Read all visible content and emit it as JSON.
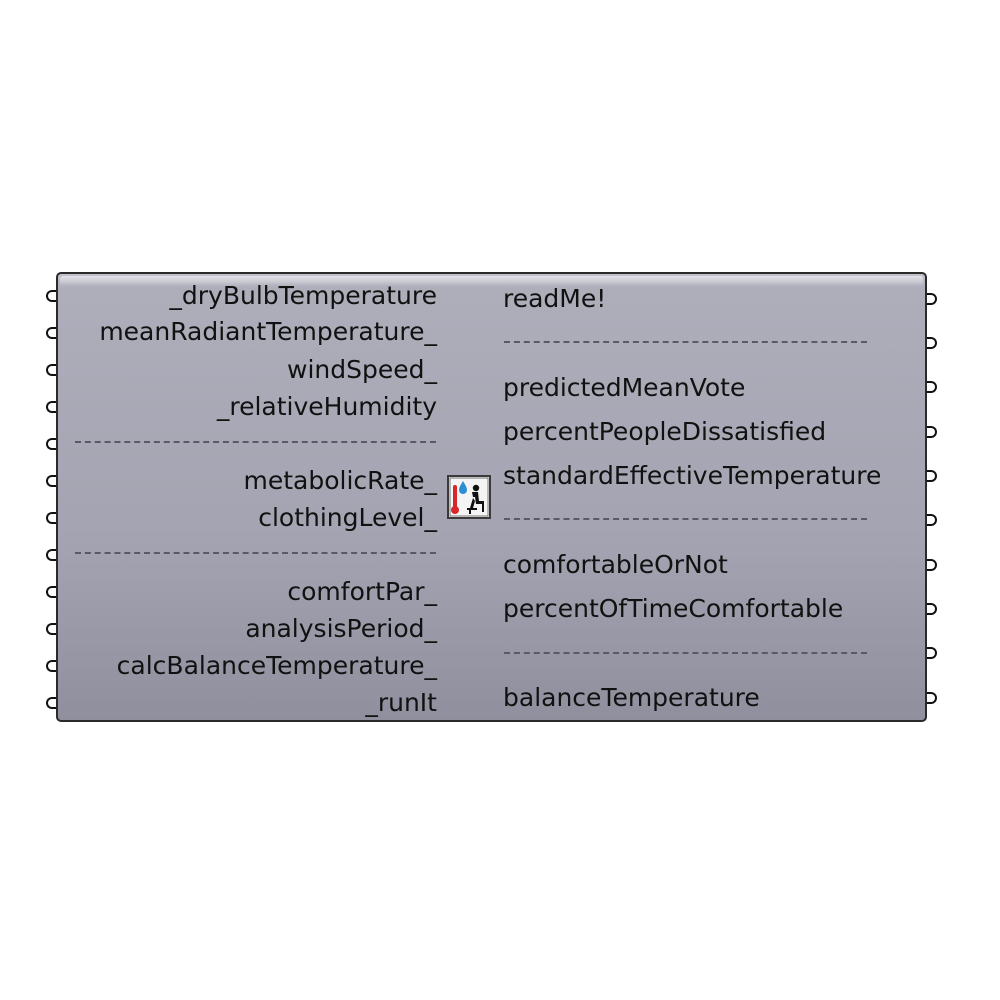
{
  "component": {
    "inputs": [
      "_dryBulbTemperature",
      "meanRadiantTemperature_",
      "windSpeed_",
      "_relativeHumidity",
      "metabolicRate_",
      "clothingLevel_",
      "comfortPar_",
      "analysisPeriod_",
      "calcBalanceTemperature_",
      "_runIt"
    ],
    "outputs": [
      "readMe!",
      "predictedMeanVote",
      "percentPeopleDissatisfied",
      "standardEffectiveTemperature",
      "comfortableOrNot",
      "percentOfTimeComfortable",
      "balanceTemperature"
    ],
    "icon": "thermal-comfort-person-icon",
    "colors": {
      "body": "#a3a3b1",
      "border": "#2a2a2a",
      "thermometer": "#d9262b",
      "droplet": "#2b8fd6"
    }
  }
}
